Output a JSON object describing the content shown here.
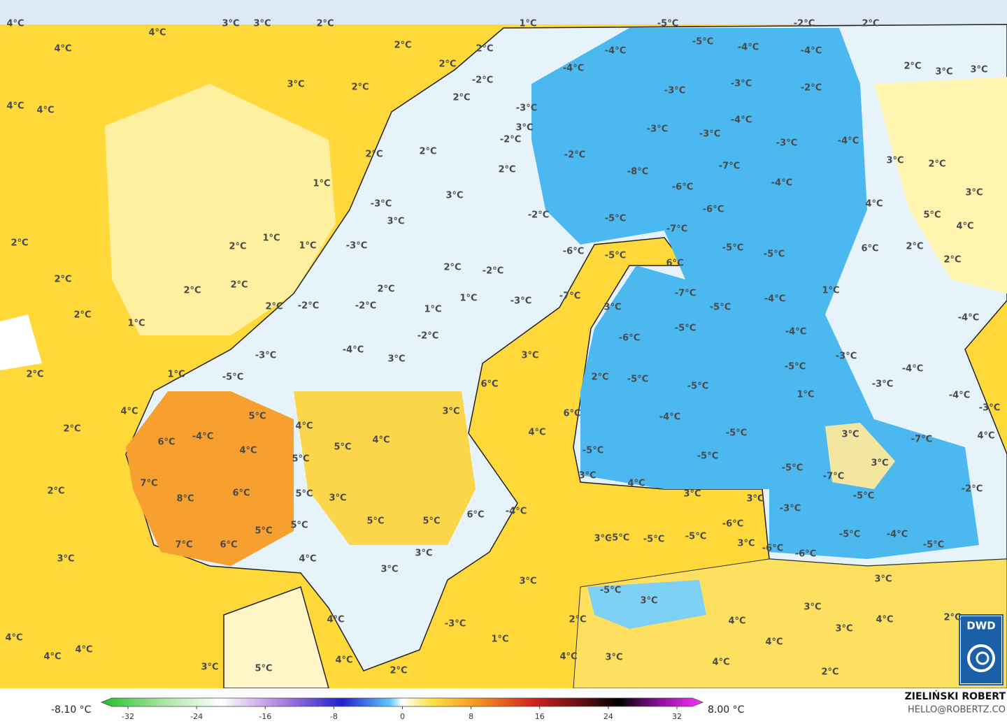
{
  "map": {
    "labels": [
      "4°C",
      "4°C",
      "3°C",
      "3°C",
      "2°C",
      "1°C",
      "-5°C",
      "-2°C",
      "2°C",
      "4°C",
      "2°C",
      "2°C",
      "-5°C",
      "-4°C",
      "-4°C",
      "-4°C",
      "2°C",
      "2°C",
      "3°C",
      "3°C",
      "3°C",
      "2°C",
      "-2°C",
      "-4°C",
      "-3°C",
      "-3°C",
      "-2°C",
      "4°C",
      "4°C",
      "2°C",
      "-3°C",
      "-4°C",
      "3°C",
      "-3°C",
      "-3°C",
      "-2°C",
      "-3°C",
      "-4°C",
      "2°C",
      "2°C",
      "-2°C",
      "3°C",
      "2°C",
      "2°C",
      "-8°C",
      "-7°C",
      "-6°C",
      "-4°C",
      "1°C",
      "3°C",
      "3°C",
      "-6°C",
      "4°C",
      "-3°C",
      "-2°C",
      "-5°C",
      "5°C",
      "3°C",
      "-7°C",
      "4°C",
      "2°C",
      "2°C",
      "1°C",
      "1°C",
      "-3°C",
      "-6°C",
      "-5°C",
      "-5°C",
      "-5°C",
      "6°C",
      "2°C",
      "2°C",
      "6°C",
      "2°C",
      "-2°C",
      "2°C",
      "2°C",
      "2°C",
      "1°C",
      "2°C",
      "-7°C",
      "-7°C",
      "-4°C",
      "1°C",
      "-3°C",
      "2°C",
      "-2°C",
      "-2°C",
      "3°C",
      "-5°C",
      "1°C",
      "2°C",
      "1°C",
      "-4°C",
      "-5°C",
      "-2°C",
      "-6°C",
      "-4°C",
      "-4°C",
      "3°C",
      "-3°C",
      "-3°C",
      "3°C",
      "-5°C",
      "-4°C",
      "2°C",
      "1°C",
      "-5°C",
      "2°C",
      "-5°C",
      "-5°C",
      "-3°C",
      "6°C",
      "1°C",
      "-4°C",
      "-3°C",
      "4°C",
      "5°C",
      "3°C",
      "6°C",
      "-4°C",
      "2°C",
      "4°C",
      "4°C",
      "-5°C",
      "3°C",
      "-4°C",
      "6°C",
      "4°C",
      "5°C",
      "4°C",
      "-5°C",
      "-7°C",
      "4°C",
      "5°C",
      "-5°C",
      "3°C",
      "-5°C",
      "-7°C",
      "7°C",
      "3°C",
      "6°C",
      "5°C",
      "2°C",
      "3°C",
      "4°C",
      "-2°C",
      "8°C",
      "3°C",
      "-5°C",
      "6°C",
      "-4°C",
      "3°C",
      "-3°C",
      "5°C",
      "5°C",
      "5°C",
      "-6°C",
      "5°C",
      "3°C",
      "-5°C",
      "-5°C",
      "-5°C",
      "-5°C",
      "-4°C",
      "-5°C",
      "7°C",
      "6°C",
      "3°C",
      "-6°C",
      "-6°C",
      "3°C",
      "3°C",
      "4°C",
      "3°C",
      "3°C",
      "3°C",
      "-5°C",
      "3°C",
      "3°C",
      "-3°C",
      "4°C",
      "2°C",
      "4°C",
      "3°C",
      "4°C",
      "2°C",
      "4°C",
      "1°C",
      "4°C",
      "4°C",
      "4°C",
      "3°C",
      "4°C",
      "4°C",
      "3°C",
      "5°C",
      "4°C",
      "2°C",
      "2°C"
    ]
  },
  "legend": {
    "min_label": "-8.10 °C",
    "max_label": "8.00 °C",
    "ticks": [
      -32,
      -24,
      -16,
      -8,
      0,
      8,
      16,
      24,
      32
    ]
  },
  "credit": {
    "author": "ZIELIŃSKI ROBERT",
    "contact": "HELLO@ROBERTZ.CO"
  },
  "logo": "DWD"
}
